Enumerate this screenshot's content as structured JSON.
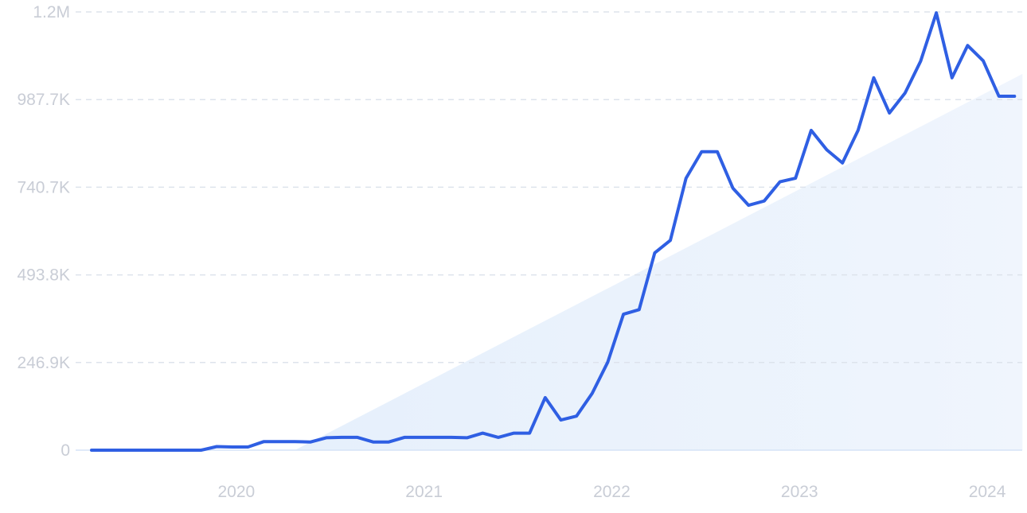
{
  "chart_data": {
    "type": "line",
    "y_tick_labels": [
      "0",
      "246.9K",
      "493.8K",
      "740.7K",
      "987.7K",
      "1.2M"
    ],
    "y_tick_values": [
      0,
      246900,
      493800,
      740700,
      987700,
      1234600
    ],
    "ylim": [
      0,
      1234600
    ],
    "x_tick_labels": [
      "2020",
      "2021",
      "2022",
      "2023",
      "2024"
    ],
    "x_tick_values": [
      "2020-01",
      "2021-01",
      "2022-01",
      "2023-01",
      "2024-01"
    ],
    "x_range": [
      "2019-04",
      "2024-03"
    ],
    "grid": true,
    "legend": "none",
    "series": [
      {
        "color": "#2f5fe3",
        "points": [
          [
            "2019-04",
            0
          ],
          [
            "2019-05",
            0
          ],
          [
            "2019-06",
            0
          ],
          [
            "2019-07",
            0
          ],
          [
            "2019-08",
            0
          ],
          [
            "2019-09",
            0
          ],
          [
            "2019-10",
            0
          ],
          [
            "2019-11",
            0
          ],
          [
            "2019-12",
            10000
          ],
          [
            "2020-01",
            9000
          ],
          [
            "2020-02",
            9000
          ],
          [
            "2020-03",
            24000
          ],
          [
            "2020-04",
            24000
          ],
          [
            "2020-05",
            24000
          ],
          [
            "2020-06",
            23000
          ],
          [
            "2020-07",
            35000
          ],
          [
            "2020-08",
            36000
          ],
          [
            "2020-09",
            36000
          ],
          [
            "2020-10",
            23000
          ],
          [
            "2020-11",
            23000
          ],
          [
            "2020-12",
            36000
          ],
          [
            "2021-01",
            36000
          ],
          [
            "2021-02",
            36000
          ],
          [
            "2021-03",
            36000
          ],
          [
            "2021-04",
            35000
          ],
          [
            "2021-05",
            48000
          ],
          [
            "2021-06",
            36000
          ],
          [
            "2021-07",
            48000
          ],
          [
            "2021-08",
            48000
          ],
          [
            "2021-09",
            148000
          ],
          [
            "2021-10",
            85000
          ],
          [
            "2021-11",
            96000
          ],
          [
            "2021-12",
            160000
          ],
          [
            "2022-01",
            248000
          ],
          [
            "2022-02",
            383000
          ],
          [
            "2022-03",
            396000
          ],
          [
            "2022-04",
            556000
          ],
          [
            "2022-05",
            591000
          ],
          [
            "2022-06",
            766000
          ],
          [
            "2022-07",
            841000
          ],
          [
            "2022-08",
            841000
          ],
          [
            "2022-09",
            738000
          ],
          [
            "2022-10",
            690000
          ],
          [
            "2022-11",
            702000
          ],
          [
            "2022-12",
            756000
          ],
          [
            "2023-01",
            766000
          ],
          [
            "2023-02",
            901000
          ],
          [
            "2023-03",
            846000
          ],
          [
            "2023-04",
            809000
          ],
          [
            "2023-05",
            901000
          ],
          [
            "2023-06",
            1049000
          ],
          [
            "2023-07",
            950000
          ],
          [
            "2023-08",
            1006000
          ],
          [
            "2023-09",
            1096000
          ],
          [
            "2023-10",
            1232000
          ],
          [
            "2023-11",
            1049000
          ],
          [
            "2023-12",
            1140000
          ],
          [
            "2024-01",
            1097000
          ],
          [
            "2024-02",
            997000
          ],
          [
            "2024-03",
            997000
          ]
        ]
      }
    ],
    "trend": {
      "color": "#2f7be5",
      "start": [
        "2020-05",
        0
      ],
      "end": [
        "2024-03",
        1060000
      ]
    }
  }
}
